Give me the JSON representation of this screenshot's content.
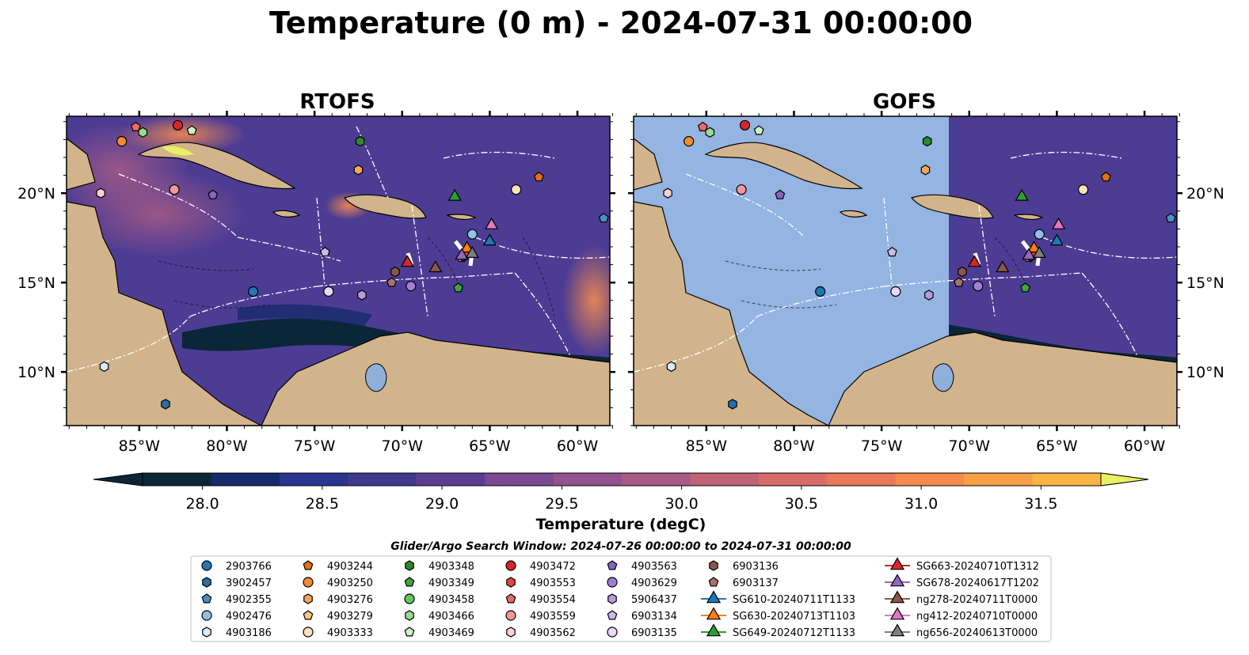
{
  "title": "Temperature (0 m) - 2024-07-31 00:00:00",
  "panels": [
    {
      "label": "RTOFS"
    },
    {
      "label": "GOFS"
    }
  ],
  "lon_ticks": [
    "85°W",
    "80°W",
    "75°W",
    "70°W",
    "65°W",
    "60°W"
  ],
  "lat_ticks": [
    "20°N",
    "15°N",
    "10°N"
  ],
  "colorbar": {
    "label": "Temperature (degC)",
    "ticks": [
      "28.0",
      "28.5",
      "29.0",
      "29.5",
      "30.0",
      "30.5",
      "31.0",
      "31.5"
    ],
    "colors": [
      "#0b2638",
      "#162b6b",
      "#2b3590",
      "#42398f",
      "#5b3e92",
      "#7a4991",
      "#93538e",
      "#a85b85",
      "#c06377",
      "#d76c6a",
      "#e8795c",
      "#f38b4e",
      "#f8a046",
      "#fbb545",
      "#f8cf48",
      "#e8f063"
    ]
  },
  "search_window": "Glider/Argo Search Window: 2024-07-26 00:00:00 to 2024-07-31 00:00:00",
  "legend": [
    {
      "label": "2903766",
      "marker": "circle",
      "color": "#1f77b4"
    },
    {
      "label": "3902457",
      "marker": "hexagon",
      "color": "#2a6ea8"
    },
    {
      "label": "4902355",
      "marker": "pentagon",
      "color": "#4a90c8"
    },
    {
      "label": "4902476",
      "marker": "circle",
      "color": "#8fc0e6"
    },
    {
      "label": "4903186",
      "marker": "hexagon",
      "color": "#d8ecfa"
    },
    {
      "label": "4903244",
      "marker": "pentagon",
      "color": "#e6700f"
    },
    {
      "label": "4903250",
      "marker": "circle",
      "color": "#f48a35"
    },
    {
      "label": "4903276",
      "marker": "hexagon",
      "color": "#f6a55e"
    },
    {
      "label": "4903279",
      "marker": "pentagon",
      "color": "#fbc38f"
    },
    {
      "label": "4903333",
      "marker": "circle",
      "color": "#fde0c0"
    },
    {
      "label": "4903348",
      "marker": "hexagon",
      "color": "#2a8a2a"
    },
    {
      "label": "4903349",
      "marker": "pentagon",
      "color": "#3ea63e"
    },
    {
      "label": "4903458",
      "marker": "circle",
      "color": "#62c462"
    },
    {
      "label": "4903466",
      "marker": "hexagon",
      "color": "#98dc90"
    },
    {
      "label": "4903469",
      "marker": "pentagon",
      "color": "#cdf2c6"
    },
    {
      "label": "4903472",
      "marker": "circle",
      "color": "#d62728"
    },
    {
      "label": "4903553",
      "marker": "hexagon",
      "color": "#e04444"
    },
    {
      "label": "4903554",
      "marker": "pentagon",
      "color": "#ea6a6a"
    },
    {
      "label": "4903559",
      "marker": "circle",
      "color": "#f29898"
    },
    {
      "label": "4903562",
      "marker": "hexagon",
      "color": "#fbd0d0"
    },
    {
      "label": "4903563",
      "marker": "pentagon",
      "color": "#8a63c4"
    },
    {
      "label": "4903629",
      "marker": "circle",
      "color": "#a07fd2"
    },
    {
      "label": "5906437",
      "marker": "hexagon",
      "color": "#b69ade"
    },
    {
      "label": "6903134",
      "marker": "pentagon",
      "color": "#cdb8ea"
    },
    {
      "label": "6903135",
      "marker": "circle",
      "color": "#e6d8f6"
    },
    {
      "label": "6903136",
      "marker": "hexagon",
      "color": "#8c564b"
    },
    {
      "label": "6903137",
      "marker": "pentagon",
      "color": "#a6716a"
    },
    {
      "label": "SG610-20240711T1133",
      "marker": "triangle",
      "color": "#1f77b4"
    },
    {
      "label": "SG630-20240713T1103",
      "marker": "triangle",
      "color": "#ff7f0e"
    },
    {
      "label": "SG649-20240712T1133",
      "marker": "triangle",
      "color": "#2ca02c"
    },
    {
      "label": "SG663-20240710T1312",
      "marker": "triangle",
      "color": "#d62728"
    },
    {
      "label": "SG678-20240617T1202",
      "marker": "triangle",
      "color": "#9467bd"
    },
    {
      "label": "ng278-20240711T0000",
      "marker": "triangle",
      "color": "#8c564b"
    },
    {
      "label": "ng412-20240710T0000",
      "marker": "triangle",
      "color": "#e377c2"
    },
    {
      "label": "ng656-20240613T0000",
      "marker": "triangle",
      "color": "#7f7f7f"
    }
  ],
  "platforms": [
    {
      "id": "2903766",
      "lon": -78.5,
      "lat": 14.5
    },
    {
      "id": "3902457",
      "lon": -83.5,
      "lat": 8.2
    },
    {
      "id": "4902355",
      "lon": -58.5,
      "lat": 18.6
    },
    {
      "id": "4902476",
      "lon": -66.0,
      "lat": 17.7
    },
    {
      "id": "4903186",
      "lon": -87.0,
      "lat": 10.3
    },
    {
      "id": "4903244",
      "lon": -62.2,
      "lat": 20.9
    },
    {
      "id": "4903250",
      "lon": -86.0,
      "lat": 22.9
    },
    {
      "id": "4903276",
      "lon": -72.5,
      "lat": 21.3
    },
    {
      "id": "4903279",
      "lon": -66.6,
      "lat": 16.4
    },
    {
      "id": "4903333",
      "lon": -63.5,
      "lat": 20.2
    },
    {
      "id": "4903348",
      "lon": -72.4,
      "lat": 22.9
    },
    {
      "id": "4903349",
      "lon": -66.8,
      "lat": 14.7
    },
    {
      "id": "4903458",
      "lon": -66.5,
      "lat": 16.5
    },
    {
      "id": "4903466",
      "lon": -84.8,
      "lat": 23.4
    },
    {
      "id": "4903469",
      "lon": -82.0,
      "lat": 23.5
    },
    {
      "id": "4903472",
      "lon": -82.8,
      "lat": 23.8
    },
    {
      "id": "4903553",
      "lon": -66.3,
      "lat": 16.7
    },
    {
      "id": "4903554",
      "lon": -85.2,
      "lat": 23.7
    },
    {
      "id": "4903559",
      "lon": -83.0,
      "lat": 20.2
    },
    {
      "id": "4903562",
      "lon": -87.2,
      "lat": 20.0
    },
    {
      "id": "4903563",
      "lon": -80.8,
      "lat": 19.9
    },
    {
      "id": "4903629",
      "lon": -69.5,
      "lat": 14.8
    },
    {
      "id": "5906437",
      "lon": -72.3,
      "lat": 14.3
    },
    {
      "id": "6903134",
      "lon": -74.4,
      "lat": 16.7
    },
    {
      "id": "6903135",
      "lon": -74.2,
      "lat": 14.5
    },
    {
      "id": "6903136",
      "lon": -70.4,
      "lat": 15.6
    },
    {
      "id": "6903137",
      "lon": -70.6,
      "lat": 15.0
    },
    {
      "id": "SG610-20240711T1133",
      "lon": -65.0,
      "lat": 17.3
    },
    {
      "id": "SG630-20240713T1103",
      "lon": -66.3,
      "lat": 16.9
    },
    {
      "id": "SG649-20240712T1133",
      "lon": -67.0,
      "lat": 19.8
    },
    {
      "id": "SG663-20240710T1312",
      "lon": -69.7,
      "lat": 16.1
    },
    {
      "id": "SG678-20240617T1202",
      "lon": -66.6,
      "lat": 16.5
    },
    {
      "id": "ng278-20240711T0000",
      "lon": -68.1,
      "lat": 15.8
    },
    {
      "id": "ng412-20240710T0000",
      "lon": -64.9,
      "lat": 18.2
    },
    {
      "id": "ng656-20240613T0000",
      "lon": -66.0,
      "lat": 16.6
    }
  ]
}
